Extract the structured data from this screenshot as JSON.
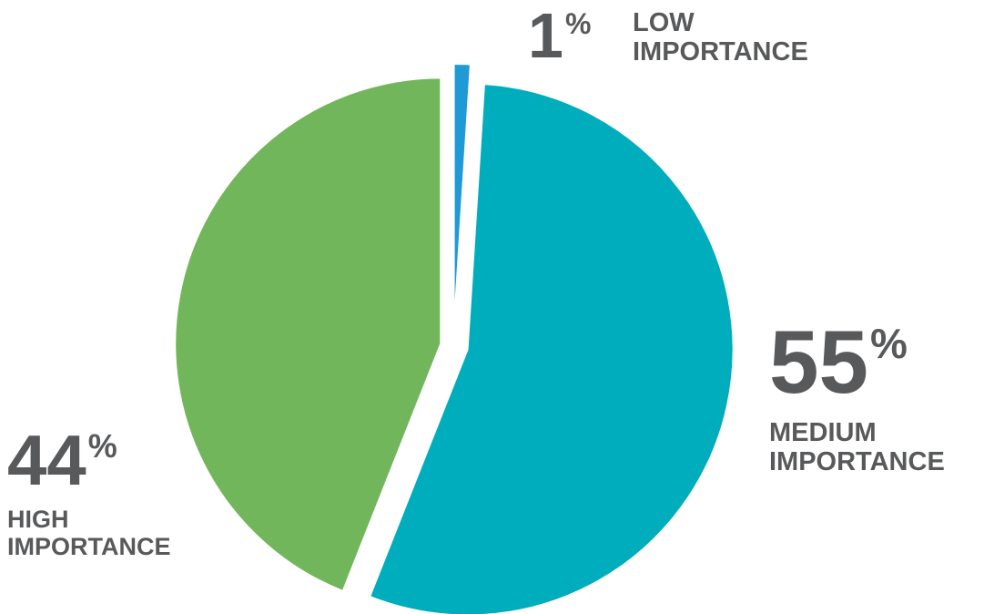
{
  "chart_data": {
    "type": "pie",
    "slices": [
      {
        "label": "LOW IMPORTANCE",
        "label_lines": [
          "LOW",
          "IMPORTANCE"
        ],
        "value": 1,
        "value_text": "1",
        "unit": "%",
        "color": "#1f9ad6"
      },
      {
        "label": "MEDIUM IMPORTANCE",
        "label_lines": [
          "MEDIUM",
          "IMPORTANCE"
        ],
        "value": 55,
        "value_text": "55",
        "unit": "%",
        "color": "#00adbc"
      },
      {
        "label": "HIGH IMPORTANCE",
        "label_lines": [
          "HIGH",
          "IMPORTANCE"
        ],
        "value": 44,
        "value_text": "44",
        "unit": "%",
        "color": "#72b65b"
      }
    ],
    "start_angle": "12 o'clock",
    "direction": "clockwise",
    "exploded": true,
    "legend": "none",
    "text_color": "#58595b"
  }
}
